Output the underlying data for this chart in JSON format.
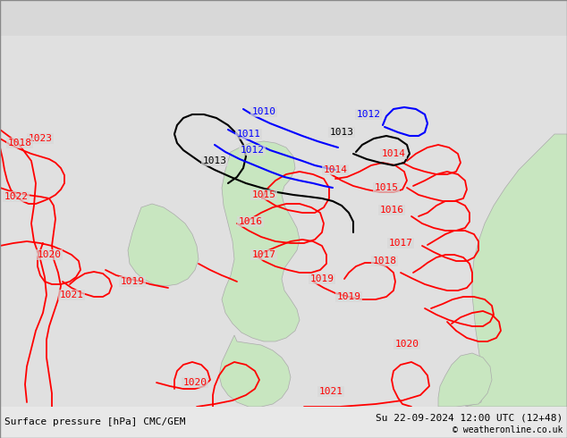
{
  "title_left": "Surface pressure [hPa] CMC/GEM",
  "title_right": "Su 22-09-2024 12:00 UTC (12+48)",
  "copyright": "© weatheronline.co.uk",
  "bg_color": "#d8d8d8",
  "land_color": "#c8e6c0",
  "bottom_bar_color": "#e8e8e8",
  "red_color": "#ff0000",
  "black_color": "#000000",
  "blue_color": "#0000ff",
  "font_size_label": 8,
  "font_size_bottom": 8
}
